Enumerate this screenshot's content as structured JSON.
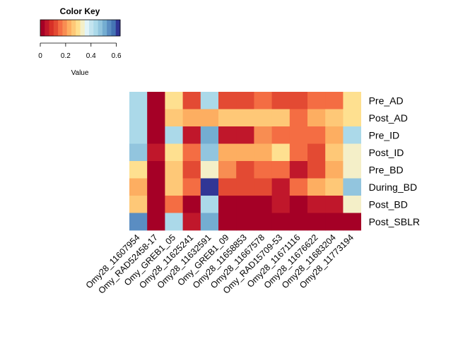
{
  "chart_data": {
    "type": "heatmap",
    "rows": [
      "Pre_AD",
      "Post_AD",
      "Pre_ID",
      "Post_ID",
      "Pre_BD",
      "During_BD",
      "Post_BD",
      "Post_SBLR"
    ],
    "columns": [
      "Omy28_11607954",
      "Omy_RAD52458-17",
      "Omy_GREB1_05",
      "Omy28_11625241",
      "Omy28_11632591",
      "Omy_GREB1_09",
      "Omy28_11658853",
      "Omy28_11667578",
      "Omy_RAD15709-53",
      "Omy28_11671116",
      "Omy28_11676622",
      "Omy28_11683204",
      "Omy28_11773194"
    ],
    "values": [
      [
        0.42,
        0.02,
        0.28,
        0.13,
        0.42,
        0.12,
        0.12,
        0.17,
        0.11,
        0.12,
        0.16,
        0.16,
        0.28
      ],
      [
        0.42,
        0.02,
        0.26,
        0.22,
        0.22,
        0.26,
        0.26,
        0.26,
        0.26,
        0.17,
        0.22,
        0.26,
        0.28
      ],
      [
        0.42,
        0.02,
        0.42,
        0.06,
        0.51,
        0.06,
        0.06,
        0.2,
        0.16,
        0.16,
        0.16,
        0.21,
        0.42
      ],
      [
        0.46,
        0.06,
        0.28,
        0.17,
        0.46,
        0.22,
        0.22,
        0.24,
        0.3,
        0.17,
        0.11,
        0.25,
        0.34
      ],
      [
        0.3,
        0.02,
        0.25,
        0.11,
        0.34,
        0.18,
        0.12,
        0.17,
        0.17,
        0.06,
        0.12,
        0.21,
        0.34
      ],
      [
        0.22,
        0.02,
        0.25,
        0.16,
        0.62,
        0.13,
        0.13,
        0.13,
        0.06,
        0.17,
        0.24,
        0.26,
        0.48
      ],
      [
        0.25,
        0.02,
        0.16,
        0.02,
        0.44,
        0.02,
        0.02,
        0.02,
        0.06,
        0.02,
        0.06,
        0.06,
        0.34
      ],
      [
        0.54,
        0.02,
        0.42,
        0.06,
        0.5,
        0.02,
        0.02,
        0.02,
        0.02,
        0.02,
        0.02,
        0.02,
        0.02
      ]
    ],
    "color_key": {
      "title": "Color Key",
      "xlabel": "Value",
      "ticks": [
        "0",
        "0.2",
        "0.4",
        "0.6"
      ],
      "range": [
        0,
        0.63
      ],
      "palette": [
        "#A50026",
        "#C0172B",
        "#D73027",
        "#E34A33",
        "#F46D43",
        "#F88D52",
        "#FDAE61",
        "#FEC877",
        "#FEE090",
        "#F4EFC8",
        "#E0F3F8",
        "#C3E4EF",
        "#ABD9E9",
        "#92C5DE",
        "#74ADD1",
        "#5A8DC2",
        "#4575B4",
        "#313695"
      ]
    }
  }
}
